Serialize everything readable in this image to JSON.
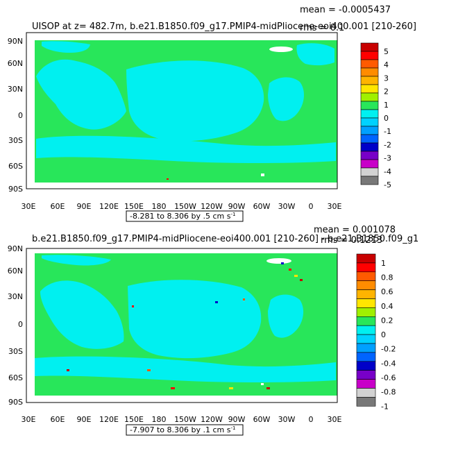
{
  "colors": {
    "land": "#28e65a",
    "ocean": "#00f0f0",
    "ice": "#ffffff"
  },
  "panels": [
    {
      "title_left": "UISOP at z= 482.7m, b.e21.B1850.f09_g17.PMIP4-midPliocene-eoi400.001 [210-260]",
      "mean_text": "mean = -0.0005437",
      "rms_text": "rms = 0.1",
      "contour_info": "-8.281 to 8.306 by .5 cm s",
      "contour_exp": "-1",
      "y_labels": [
        "90N",
        "60N",
        "30N",
        "0",
        "30S",
        "60S",
        "90S"
      ],
      "x_labels": [
        "30E",
        "60E",
        "90E",
        "120E",
        "150E",
        "180",
        "150W",
        "120W",
        "90W",
        "60W",
        "30W",
        "0",
        "30E"
      ],
      "colorbar": {
        "labels": [
          "5",
          "4",
          "3",
          "2",
          "1",
          "0",
          "-1",
          "-2",
          "-3",
          "-4",
          "-5"
        ],
        "colors": [
          "#c80000",
          "#ff0000",
          "#ff5a00",
          "#ff8c00",
          "#ffb400",
          "#ffe600",
          "#a0f000",
          "#28e65a",
          "#00f0f0",
          "#00d2ff",
          "#00a0ff",
          "#0064ff",
          "#0000c8",
          "#7800c8",
          "#c800c8",
          "#d2d2d2",
          "#787878"
        ]
      }
    },
    {
      "title_left": "b.e21.B1850.f09_g17.PMIP4-midPliocene-eoi400.001 [210-260] - b.e21.B1850.f09_g1",
      "mean_text": "mean = 0.001078",
      "rms_text": "rms = 0.1213",
      "contour_info": "-7.907 to 8.306 by .1 cm s",
      "contour_exp": "-1",
      "y_labels": [
        "90N",
        "60N",
        "30N",
        "0",
        "30S",
        "60S",
        "90S"
      ],
      "x_labels": [
        "30E",
        "60E",
        "90E",
        "120E",
        "150E",
        "180",
        "150W",
        "120W",
        "90W",
        "60W",
        "30W",
        "0",
        "30E"
      ],
      "colorbar": {
        "labels": [
          "1",
          "0.8",
          "0.6",
          "0.4",
          "0.2",
          "0",
          "-0.2",
          "-0.4",
          "-0.6",
          "-0.8",
          "-1"
        ],
        "colors": [
          "#c80000",
          "#ff0000",
          "#ff5a00",
          "#ff8c00",
          "#ffb400",
          "#ffe600",
          "#a0f000",
          "#28e65a",
          "#00f0f0",
          "#00d2ff",
          "#00a0ff",
          "#0064ff",
          "#0000c8",
          "#7800c8",
          "#c800c8",
          "#d2d2d2",
          "#787878"
        ]
      }
    }
  ]
}
